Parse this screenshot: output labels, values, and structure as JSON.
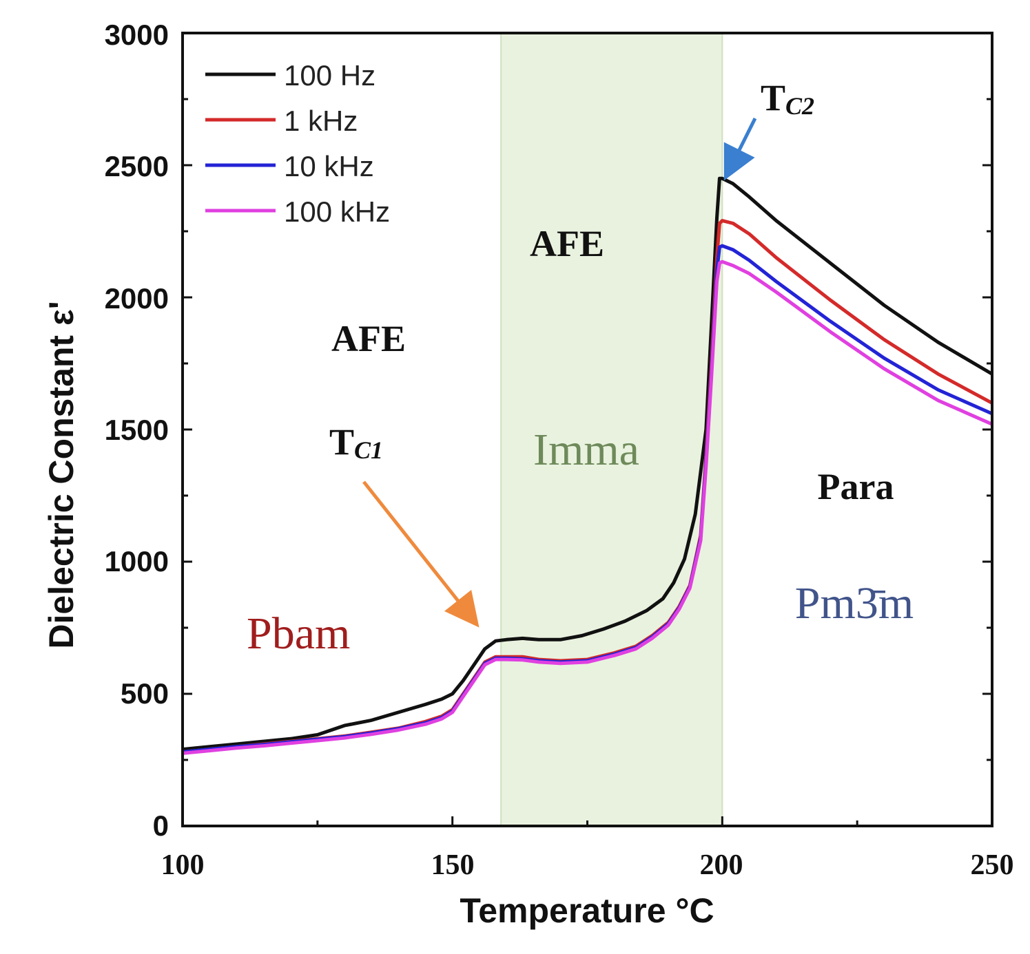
{
  "chart_data": {
    "type": "line",
    "title": "",
    "xlabel": "Temperature °C",
    "ylabel": "Dielectric Constant ε'",
    "xlim": [
      100,
      250
    ],
    "ylim": [
      0,
      3000
    ],
    "x_ticks": [
      "100",
      "150",
      "200",
      "250"
    ],
    "y_ticks": [
      "0",
      "500",
      "1000",
      "1500",
      "2000",
      "2500",
      "3000"
    ],
    "grid": false,
    "legend_position": "top-left",
    "shaded_region": {
      "x_start": 159,
      "x_end": 200,
      "color": "#e9f2df"
    },
    "series": [
      {
        "name": "100 Hz",
        "color": "#111111",
        "points": [
          [
            100,
            290
          ],
          [
            105,
            300
          ],
          [
            110,
            310
          ],
          [
            115,
            320
          ],
          [
            120,
            330
          ],
          [
            125,
            345
          ],
          [
            130,
            380
          ],
          [
            135,
            400
          ],
          [
            140,
            430
          ],
          [
            145,
            460
          ],
          [
            148,
            480
          ],
          [
            150,
            500
          ],
          [
            152,
            550
          ],
          [
            154,
            610
          ],
          [
            156,
            670
          ],
          [
            158,
            700
          ],
          [
            160,
            705
          ],
          [
            163,
            710
          ],
          [
            166,
            705
          ],
          [
            170,
            705
          ],
          [
            174,
            720
          ],
          [
            178,
            745
          ],
          [
            182,
            775
          ],
          [
            186,
            815
          ],
          [
            189,
            860
          ],
          [
            191,
            920
          ],
          [
            193,
            1010
          ],
          [
            195,
            1180
          ],
          [
            197,
            1500
          ],
          [
            198,
            1900
          ],
          [
            199,
            2300
          ],
          [
            199.5,
            2450
          ],
          [
            200,
            2450
          ],
          [
            202,
            2430
          ],
          [
            205,
            2380
          ],
          [
            210,
            2290
          ],
          [
            220,
            2130
          ],
          [
            230,
            1970
          ],
          [
            240,
            1830
          ],
          [
            250,
            1710
          ]
        ]
      },
      {
        "name": "1 kHz",
        "color": "#d42a2a",
        "points": [
          [
            100,
            280
          ],
          [
            105,
            290
          ],
          [
            110,
            300
          ],
          [
            115,
            310
          ],
          [
            120,
            320
          ],
          [
            125,
            330
          ],
          [
            130,
            340
          ],
          [
            135,
            355
          ],
          [
            140,
            370
          ],
          [
            145,
            395
          ],
          [
            148,
            415
          ],
          [
            150,
            440
          ],
          [
            152,
            500
          ],
          [
            154,
            560
          ],
          [
            156,
            620
          ],
          [
            158,
            640
          ],
          [
            160,
            640
          ],
          [
            163,
            640
          ],
          [
            166,
            630
          ],
          [
            170,
            625
          ],
          [
            175,
            630
          ],
          [
            180,
            655
          ],
          [
            184,
            680
          ],
          [
            187,
            720
          ],
          [
            190,
            770
          ],
          [
            192,
            830
          ],
          [
            194,
            910
          ],
          [
            196,
            1100
          ],
          [
            197,
            1400
          ],
          [
            198,
            1750
          ],
          [
            199,
            2150
          ],
          [
            199.5,
            2280
          ],
          [
            200,
            2290
          ],
          [
            202,
            2280
          ],
          [
            205,
            2240
          ],
          [
            210,
            2150
          ],
          [
            220,
            1990
          ],
          [
            230,
            1840
          ],
          [
            240,
            1710
          ],
          [
            250,
            1600
          ]
        ]
      },
      {
        "name": "10 kHz",
        "color": "#2323d6",
        "points": [
          [
            100,
            280
          ],
          [
            105,
            290
          ],
          [
            110,
            300
          ],
          [
            115,
            308
          ],
          [
            120,
            318
          ],
          [
            125,
            328
          ],
          [
            130,
            338
          ],
          [
            135,
            352
          ],
          [
            140,
            368
          ],
          [
            145,
            390
          ],
          [
            148,
            410
          ],
          [
            150,
            435
          ],
          [
            152,
            495
          ],
          [
            154,
            555
          ],
          [
            156,
            615
          ],
          [
            158,
            635
          ],
          [
            160,
            635
          ],
          [
            163,
            632
          ],
          [
            166,
            625
          ],
          [
            170,
            620
          ],
          [
            175,
            625
          ],
          [
            180,
            650
          ],
          [
            184,
            675
          ],
          [
            187,
            715
          ],
          [
            190,
            765
          ],
          [
            192,
            825
          ],
          [
            194,
            905
          ],
          [
            196,
            1090
          ],
          [
            197,
            1380
          ],
          [
            198,
            1720
          ],
          [
            199,
            2100
          ],
          [
            199.5,
            2190
          ],
          [
            200,
            2195
          ],
          [
            202,
            2180
          ],
          [
            205,
            2140
          ],
          [
            210,
            2060
          ],
          [
            220,
            1910
          ],
          [
            230,
            1770
          ],
          [
            240,
            1650
          ],
          [
            250,
            1560
          ]
        ]
      },
      {
        "name": "100 kHz",
        "color": "#e040e0",
        "points": [
          [
            100,
            275
          ],
          [
            105,
            285
          ],
          [
            110,
            295
          ],
          [
            115,
            303
          ],
          [
            120,
            313
          ],
          [
            125,
            323
          ],
          [
            130,
            333
          ],
          [
            135,
            347
          ],
          [
            140,
            363
          ],
          [
            145,
            385
          ],
          [
            148,
            405
          ],
          [
            150,
            430
          ],
          [
            152,
            490
          ],
          [
            154,
            550
          ],
          [
            156,
            610
          ],
          [
            158,
            630
          ],
          [
            160,
            630
          ],
          [
            163,
            628
          ],
          [
            166,
            620
          ],
          [
            170,
            615
          ],
          [
            175,
            620
          ],
          [
            180,
            645
          ],
          [
            184,
            670
          ],
          [
            187,
            710
          ],
          [
            190,
            760
          ],
          [
            192,
            820
          ],
          [
            194,
            900
          ],
          [
            196,
            1080
          ],
          [
            197,
            1360
          ],
          [
            198,
            1700
          ],
          [
            199,
            2060
          ],
          [
            199.5,
            2130
          ],
          [
            200,
            2135
          ],
          [
            202,
            2120
          ],
          [
            205,
            2090
          ],
          [
            210,
            2020
          ],
          [
            220,
            1870
          ],
          [
            230,
            1730
          ],
          [
            240,
            1610
          ],
          [
            250,
            1520
          ]
        ]
      }
    ],
    "annotations": {
      "afe_low": "AFE",
      "tc1_main": "T",
      "tc1_sub": "C1",
      "pbam": "Pbam",
      "afe_mid": "AFE",
      "imma": "Imma",
      "tc2_main": "T",
      "tc2_sub": "C2",
      "para": "Para",
      "pm3m": "Pm3̄m"
    },
    "annotation_colors": {
      "pbam": "#a01d1d",
      "imma": "#6e8a5a",
      "pm3m": "#41548a",
      "arrow_tc1": "#ef8a3d",
      "arrow_tc2": "#3a7fd0"
    }
  }
}
